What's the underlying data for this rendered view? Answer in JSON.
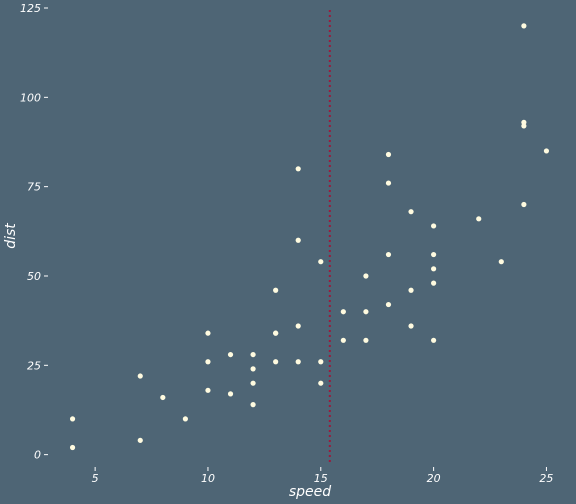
{
  "chart_data": {
    "type": "scatter",
    "title": "",
    "xlabel": "speed",
    "ylabel": "dist",
    "xlim": [
      3.0,
      26.0
    ],
    "ylim": [
      -2.9,
      125.0
    ],
    "xticks": [
      5,
      10,
      15,
      20,
      25
    ],
    "yticks": [
      0,
      25,
      50,
      75,
      100,
      125
    ],
    "grid": false,
    "legend": "none",
    "colors": {
      "background": "#4e6575",
      "points": "#fffbe0",
      "vline": "#9a1b3c",
      "text": "#ffffff"
    },
    "vline": {
      "x": 15.4,
      "style": "dotted"
    },
    "points": [
      {
        "x": 4,
        "y": 2
      },
      {
        "x": 4,
        "y": 10
      },
      {
        "x": 7,
        "y": 4
      },
      {
        "x": 7,
        "y": 22
      },
      {
        "x": 8,
        "y": 16
      },
      {
        "x": 9,
        "y": 10
      },
      {
        "x": 10,
        "y": 18
      },
      {
        "x": 10,
        "y": 26
      },
      {
        "x": 10,
        "y": 34
      },
      {
        "x": 11,
        "y": 17
      },
      {
        "x": 11,
        "y": 28
      },
      {
        "x": 12,
        "y": 14
      },
      {
        "x": 12,
        "y": 20
      },
      {
        "x": 12,
        "y": 24
      },
      {
        "x": 12,
        "y": 28
      },
      {
        "x": 13,
        "y": 26
      },
      {
        "x": 13,
        "y": 34
      },
      {
        "x": 13,
        "y": 34
      },
      {
        "x": 13,
        "y": 46
      },
      {
        "x": 14,
        "y": 26
      },
      {
        "x": 14,
        "y": 36
      },
      {
        "x": 14,
        "y": 60
      },
      {
        "x": 14,
        "y": 80
      },
      {
        "x": 15,
        "y": 20
      },
      {
        "x": 15,
        "y": 26
      },
      {
        "x": 15,
        "y": 54
      },
      {
        "x": 16,
        "y": 32
      },
      {
        "x": 16,
        "y": 40
      },
      {
        "x": 17,
        "y": 32
      },
      {
        "x": 17,
        "y": 40
      },
      {
        "x": 17,
        "y": 50
      },
      {
        "x": 18,
        "y": 42
      },
      {
        "x": 18,
        "y": 56
      },
      {
        "x": 18,
        "y": 76
      },
      {
        "x": 18,
        "y": 84
      },
      {
        "x": 19,
        "y": 36
      },
      {
        "x": 19,
        "y": 46
      },
      {
        "x": 19,
        "y": 68
      },
      {
        "x": 20,
        "y": 32
      },
      {
        "x": 20,
        "y": 48
      },
      {
        "x": 20,
        "y": 52
      },
      {
        "x": 20,
        "y": 56
      },
      {
        "x": 20,
        "y": 64
      },
      {
        "x": 22,
        "y": 66
      },
      {
        "x": 23,
        "y": 54
      },
      {
        "x": 24,
        "y": 70
      },
      {
        "x": 24,
        "y": 92
      },
      {
        "x": 24,
        "y": 93
      },
      {
        "x": 24,
        "y": 120
      },
      {
        "x": 25,
        "y": 85
      }
    ]
  }
}
